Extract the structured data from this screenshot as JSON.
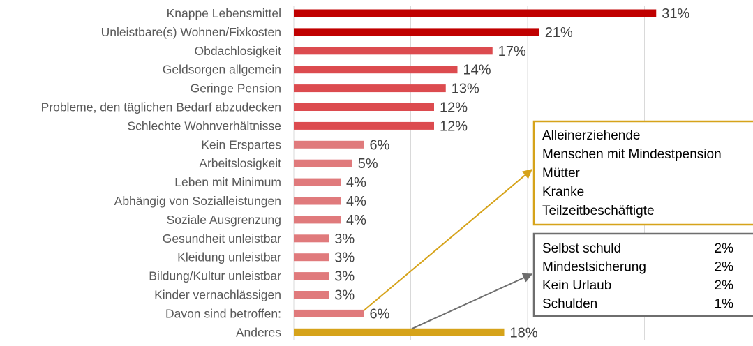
{
  "colors": {
    "bar_high": "#c00000",
    "bar_mid": "#dc4b4f",
    "bar_low": "#e07a7c",
    "bar_other": "#d6a31a",
    "group_box_border": "#d6a31a",
    "other_box_border": "#6e6e6e",
    "grid": "#d9d9d9"
  },
  "chart_data": {
    "type": "bar",
    "orientation": "horizontal",
    "title": "",
    "xlabel": "",
    "ylabel": "",
    "xlim": [
      0,
      40
    ],
    "grid": true,
    "categories": [
      "Knappe Lebensmittel",
      "Unleistbare(s) Wohnen/Fixkosten",
      "Obdachlosigkeit",
      "Geldsorgen allgemein",
      "Geringe Pension",
      "Probleme, den täglichen Bedarf abzudecken",
      "Schlechte Wohnverhältnisse",
      "Kein Erspartes",
      "Arbeitslosigkeit",
      "Leben mit Minimum",
      "Abhängig von Sozialleistungen",
      "Soziale Ausgrenzung",
      "Gesundheit unleistbar",
      "Kleidung unleistbar",
      "Bildung/Kultur unleistbar",
      "Kinder vernachlässigen",
      "Davon sind betroffen:",
      "Anderes"
    ],
    "values": [
      31,
      21,
      17,
      14,
      13,
      12,
      12,
      6,
      5,
      4,
      4,
      4,
      3,
      3,
      3,
      3,
      6,
      18
    ],
    "value_labels": [
      "31%",
      "21%",
      "17%",
      "14%",
      "13%",
      "12%",
      "12%",
      "6%",
      "5%",
      "4%",
      "4%",
      "4%",
      "3%",
      "3%",
      "3%",
      "3%",
      "6%",
      "18%"
    ],
    "bar_color_keys": [
      "bar_high",
      "bar_high",
      "bar_mid",
      "bar_mid",
      "bar_mid",
      "bar_mid",
      "bar_mid",
      "bar_low",
      "bar_low",
      "bar_low",
      "bar_low",
      "bar_low",
      "bar_low",
      "bar_low",
      "bar_low",
      "bar_low",
      "bar_low",
      "bar_other"
    ],
    "annotations": [
      {
        "from_category": "Davon sind betroffen:",
        "type": "list",
        "items": [
          "Alleinerziehende",
          "Menschen mit Mindestpension",
          "Mütter",
          "Kranke",
          "Teilzeitbeschäftigte"
        ]
      },
      {
        "from_category": "Anderes",
        "type": "table",
        "rows": [
          {
            "label": "Selbst schuld",
            "value": "2%"
          },
          {
            "label": "Mindestsicherung",
            "value": "2%"
          },
          {
            "label": "Kein Urlaub",
            "value": "2%"
          },
          {
            "label": "Schulden",
            "value": "1%"
          }
        ]
      }
    ]
  }
}
